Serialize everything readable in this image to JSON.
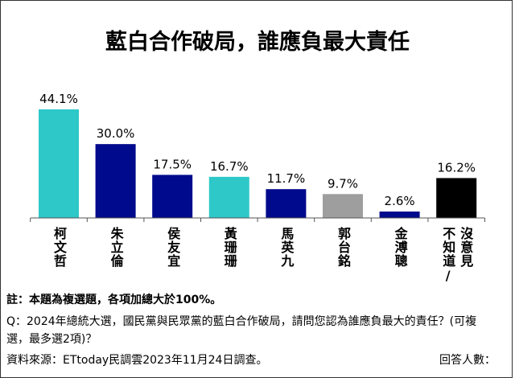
{
  "chart_data": {
    "type": "bar",
    "title": "藍白合作破局，誰應負最大責任",
    "categories": [
      "柯文哲",
      "朱立倫",
      "侯友宜",
      "黃珊珊",
      "馬英九",
      "郭台銘",
      "金溥聰",
      "不知道/沒意見"
    ],
    "category_lines": [
      [
        "柯文哲"
      ],
      [
        "朱立倫"
      ],
      [
        "侯友宜"
      ],
      [
        "黃珊珊"
      ],
      [
        "馬英九"
      ],
      [
        "郭台銘"
      ],
      [
        "金溥聰"
      ],
      [
        "不知道/",
        "沒意見"
      ]
    ],
    "values": [
      44.1,
      30.0,
      17.5,
      16.7,
      11.7,
      9.7,
      2.6,
      16.2
    ],
    "data_labels": [
      "44.1%",
      "30.0%",
      "17.5%",
      "16.7%",
      "11.7%",
      "9.7%",
      "2.6%",
      "16.2%"
    ],
    "colors": [
      "#2ec8c8",
      "#000a8c",
      "#000a8c",
      "#2ec8c8",
      "#000a8c",
      "#9e9e9e",
      "#000a8c",
      "#000000"
    ],
    "unit": "%",
    "ylim": [
      0,
      50
    ],
    "grid": false,
    "xlabel": "",
    "ylabel": ""
  },
  "notes": {
    "remark": "註：本題為複選題，各項加總大於100%。",
    "question_line1": "Q：2024年總統大選，國民黨與民眾黨的藍白合作破局，請問您認為誰應負最大的責任？(可複",
    "question_line2": "選，最多選2項)？",
    "source": "資料來源：ETtoday民調雲2023年11月24日調查。",
    "respondents_label": "回答人數："
  }
}
